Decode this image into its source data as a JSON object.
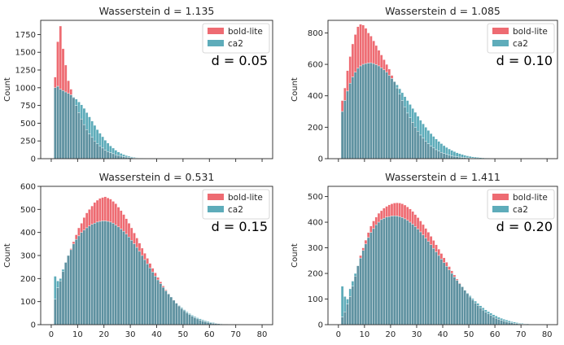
{
  "colors": {
    "bold_lite": "#ee6b72",
    "ca2": "#5eacba",
    "overlap": "#5e91a0",
    "edge": "#ffffff",
    "frame": "#262626"
  },
  "chart_data": [
    {
      "type": "bar",
      "title": "Wasserstein d = 1.135",
      "annotation": "d = 0.05",
      "ylabel": "Count",
      "xlabel": "",
      "xlim": [
        -4,
        84
      ],
      "ylim": [
        0,
        1950
      ],
      "xticks": [
        0,
        10,
        20,
        30,
        40,
        50,
        60,
        70,
        80
      ],
      "show_xtick_labels": false,
      "yticks": [
        0,
        250,
        500,
        750,
        1000,
        1250,
        1500,
        1750
      ],
      "bin_start": 1,
      "bin_width": 1,
      "legend_position": "top-right",
      "series": [
        {
          "name": "bold-lite",
          "values": [
            1150,
            1650,
            1870,
            1550,
            1320,
            1100,
            980,
            860,
            750,
            650,
            560,
            480,
            410,
            350,
            300,
            250,
            210,
            180,
            150,
            120,
            100,
            85,
            70,
            55,
            45,
            35,
            28,
            22,
            17,
            13,
            10,
            8,
            6,
            5,
            4,
            3,
            2,
            2,
            1,
            1
          ]
        },
        {
          "name": "ca2",
          "values": [
            1000,
            1020,
            980,
            960,
            940,
            920,
            900,
            870,
            840,
            800,
            760,
            710,
            650,
            590,
            530,
            470,
            410,
            360,
            310,
            260,
            220,
            180,
            150,
            120,
            95,
            75,
            58,
            45,
            35,
            27,
            20,
            15,
            11,
            8,
            6,
            4,
            3,
            2,
            1,
            1
          ]
        }
      ]
    },
    {
      "type": "bar",
      "title": "Wasserstein d = 1.085",
      "annotation": "d = 0.10",
      "ylabel": "Count",
      "xlabel": "",
      "xlim": [
        -4,
        84
      ],
      "ylim": [
        0,
        880
      ],
      "xticks": [
        0,
        10,
        20,
        30,
        40,
        50,
        60,
        70,
        80
      ],
      "show_xtick_labels": false,
      "yticks": [
        0,
        200,
        400,
        600,
        800
      ],
      "bin_start": 1,
      "bin_width": 1,
      "legend_position": "top-right",
      "series": [
        {
          "name": "bold-lite",
          "values": [
            370,
            450,
            560,
            650,
            730,
            790,
            840,
            855,
            850,
            830,
            800,
            780,
            750,
            720,
            690,
            660,
            630,
            600,
            570,
            530,
            490,
            450,
            410,
            370,
            330,
            290,
            260,
            230,
            200,
            175,
            150,
            130,
            110,
            95,
            80,
            68,
            57,
            48,
            40,
            33,
            27,
            22,
            18,
            15,
            12,
            10,
            8,
            6,
            5,
            4,
            3,
            2,
            2,
            1,
            1
          ]
        },
        {
          "name": "ca2",
          "values": [
            300,
            370,
            430,
            480,
            520,
            550,
            575,
            590,
            600,
            605,
            608,
            610,
            605,
            598,
            590,
            578,
            565,
            550,
            530,
            510,
            490,
            470,
            445,
            420,
            395,
            370,
            345,
            320,
            295,
            270,
            245,
            222,
            200,
            180,
            160,
            142,
            125,
            110,
            96,
            83,
            72,
            62,
            53,
            45,
            38,
            32,
            27,
            22,
            18,
            15,
            12,
            10,
            8,
            6,
            5,
            4,
            3,
            2,
            2,
            1
          ]
        }
      ]
    },
    {
      "type": "bar",
      "title": "Wasserstein d = 0.531",
      "annotation": "d = 0.15",
      "ylabel": "Count",
      "xlabel": "",
      "xlim": [
        -4,
        84
      ],
      "ylim": [
        0,
        600
      ],
      "xticks": [
        0,
        10,
        20,
        30,
        40,
        50,
        60,
        70,
        80
      ],
      "show_xtick_labels": true,
      "yticks": [
        0,
        100,
        200,
        300,
        400,
        500,
        600
      ],
      "bin_start": 1,
      "bin_width": 1,
      "legend_position": "top-right",
      "series": [
        {
          "name": "bold-lite",
          "values": [
            110,
            160,
            190,
            230,
            270,
            300,
            330,
            360,
            390,
            420,
            440,
            465,
            485,
            500,
            515,
            530,
            540,
            548,
            552,
            555,
            550,
            545,
            535,
            525,
            510,
            495,
            478,
            460,
            440,
            420,
            398,
            376,
            354,
            332,
            310,
            288,
            266,
            245,
            225,
            205,
            186,
            168,
            151,
            135,
            120,
            106,
            93,
            81,
            70,
            60,
            51,
            43,
            36,
            30,
            25,
            20,
            16,
            13,
            10,
            8,
            6,
            5,
            4,
            3,
            2,
            2,
            1
          ]
        },
        {
          "name": "ca2",
          "values": [
            210,
            190,
            200,
            240,
            270,
            300,
            325,
            350,
            370,
            385,
            400,
            410,
            420,
            428,
            435,
            440,
            445,
            448,
            450,
            450,
            448,
            445,
            440,
            432,
            424,
            415,
            405,
            393,
            380,
            366,
            351,
            335,
            318,
            300,
            282,
            264,
            246,
            228,
            211,
            194,
            178,
            162,
            147,
            133,
            120,
            107,
            95,
            84,
            74,
            65,
            56,
            48,
            41,
            35,
            30,
            25,
            21,
            17,
            14,
            11,
            9,
            7,
            5,
            4,
            3,
            2,
            1
          ]
        }
      ]
    },
    {
      "type": "bar",
      "title": "Wasserstein d = 1.411",
      "annotation": "d = 0.20",
      "ylabel": "Count",
      "xlabel": "",
      "xlim": [
        -4,
        84
      ],
      "ylim": [
        0,
        540
      ],
      "xticks": [
        0,
        10,
        20,
        30,
        40,
        50,
        60,
        70,
        80
      ],
      "show_xtick_labels": true,
      "yticks": [
        0,
        100,
        200,
        300,
        400,
        500
      ],
      "bin_start": 1,
      "bin_width": 1,
      "legend_position": "top-right",
      "series": [
        {
          "name": "bold-lite",
          "values": [
            30,
            50,
            80,
            110,
            150,
            190,
            230,
            270,
            300,
            330,
            360,
            385,
            405,
            420,
            435,
            445,
            455,
            462,
            468,
            472,
            475,
            476,
            475,
            472,
            467,
            460,
            452,
            442,
            430,
            418,
            405,
            391,
            376,
            361,
            345,
            329,
            312,
            295,
            278,
            261,
            244,
            227,
            210,
            194,
            178,
            163,
            148,
            134,
            121,
            108,
            96,
            85,
            75,
            66,
            57,
            49,
            42,
            36,
            30,
            25,
            21,
            17,
            14,
            11,
            9,
            7,
            5,
            4,
            3,
            2,
            2,
            1
          ]
        },
        {
          "name": "ca2",
          "values": [
            150,
            110,
            100,
            140,
            170,
            200,
            230,
            260,
            290,
            315,
            340,
            360,
            375,
            390,
            400,
            410,
            415,
            420,
            422,
            424,
            425,
            424,
            422,
            418,
            413,
            407,
            400,
            392,
            383,
            373,
            362,
            350,
            338,
            325,
            312,
            298,
            284,
            270,
            256,
            242,
            228,
            214,
            200,
            186,
            173,
            160,
            148,
            136,
            124,
            113,
            102,
            92,
            83,
            74,
            66,
            58,
            51,
            45,
            39,
            34,
            29,
            25,
            21,
            18,
            15,
            12,
            10,
            8,
            6,
            5,
            4,
            3
          ]
        }
      ]
    }
  ]
}
